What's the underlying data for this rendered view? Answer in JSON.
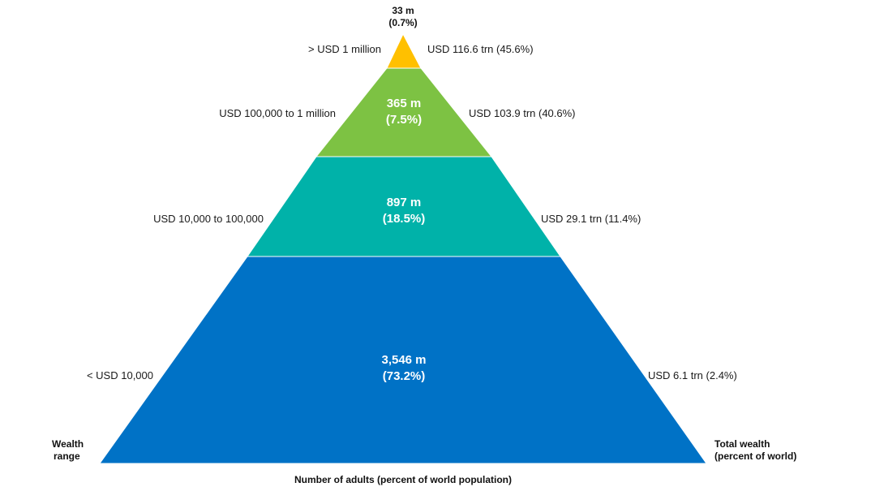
{
  "colors": {
    "tier1": "#ffc000",
    "tier2": "#7dc243",
    "tier3": "#00b2a9",
    "tier4": "#0072c6"
  },
  "tiers": [
    {
      "range": "> USD 1 million",
      "adults": "33 m",
      "adults_pct": "(0.7%)",
      "wealth": "USD 116.6 trn (45.6%)",
      "adults_millions": 33,
      "adults_share_pct": 0.7,
      "wealth_trn": 116.6,
      "wealth_share_pct": 45.6
    },
    {
      "range": "USD 100,000 to 1 million",
      "adults": "365 m",
      "adults_pct": "(7.5%)",
      "wealth": "USD 103.9 trn (40.6%)",
      "adults_millions": 365,
      "adults_share_pct": 7.5,
      "wealth_trn": 103.9,
      "wealth_share_pct": 40.6
    },
    {
      "range": "USD 10,000 to 100,000",
      "adults": "897 m",
      "adults_pct": "(18.5%)",
      "wealth": "USD 29.1 trn (11.4%)",
      "adults_millions": 897,
      "adults_share_pct": 18.5,
      "wealth_trn": 29.1,
      "wealth_share_pct": 11.4
    },
    {
      "range": "< USD 10,000",
      "adults": "3,546 m",
      "adults_pct": "(73.2%)",
      "wealth": "USD 6.1 trn (2.4%)",
      "adults_millions": 3546,
      "adults_share_pct": 73.2,
      "wealth_trn": 6.1,
      "wealth_share_pct": 2.4
    }
  ],
  "axes": {
    "left_line1": "Wealth",
    "left_line2": "range",
    "right_line1": "Total wealth",
    "right_line2": "(percent of world)",
    "bottom": "Number of adults (percent of world population)"
  }
}
